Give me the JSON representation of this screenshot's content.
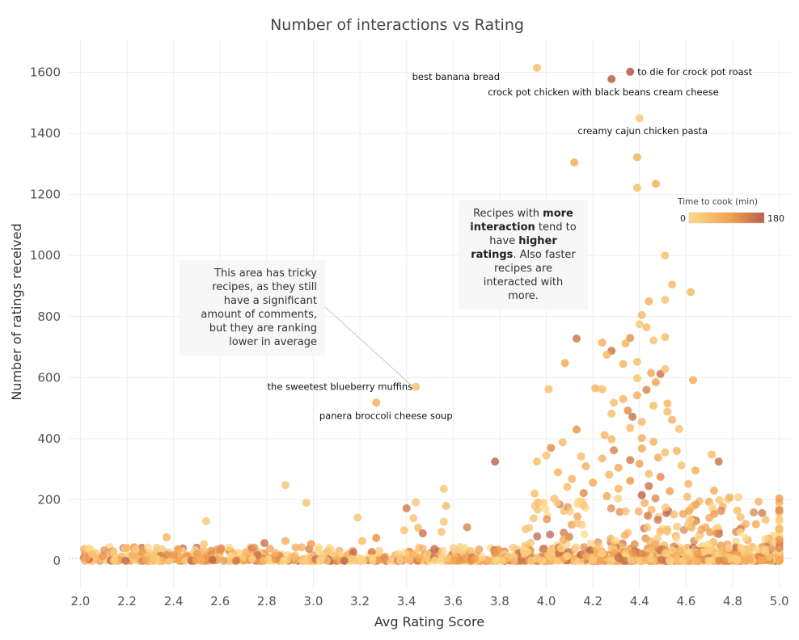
{
  "chart_data": {
    "type": "scatter",
    "title": "Number of interactions vs Rating",
    "xlabel": "Avg Rating Score",
    "ylabel": "Number of ratings received",
    "xlim": [
      1.95,
      5.05
    ],
    "ylim": [
      -90,
      1710
    ],
    "x_ticks": [
      "2.0",
      "2.2",
      "2.4",
      "2.6",
      "2.8",
      "3.0",
      "3.2",
      "3.4",
      "3.6",
      "3.8",
      "4.0",
      "4.2",
      "4.4",
      "4.6",
      "4.8",
      "5.0"
    ],
    "y_ticks": [
      "0",
      "200",
      "400",
      "600",
      "800",
      "1000",
      "1200",
      "1400",
      "1600"
    ],
    "grid": true,
    "color_scale": {
      "title": "Time to cook (min)",
      "min_label": "0",
      "max_label": "180",
      "min": 0,
      "max": 180,
      "colors": [
        "#fdd98a",
        "#f3a04d",
        "#b9604f"
      ]
    },
    "labeled_points": [
      {
        "name": "best banana bread",
        "x": 3.96,
        "y": 1615,
        "time": 40
      },
      {
        "name": "to die for crock pot roast",
        "x": 4.36,
        "y": 1602,
        "time": 180
      },
      {
        "name": "crock pot chicken with black beans   cream cheese",
        "x": 4.28,
        "y": 1578,
        "time": 170
      },
      {
        "name": "creamy cajun chicken pasta",
        "x": 4.4,
        "y": 1450,
        "time": 25
      },
      {
        "name": "the sweetest blueberry muffins",
        "x": 3.44,
        "y": 570,
        "time": 35
      },
      {
        "name": "panera broccoli cheese soup",
        "x": 3.27,
        "y": 518,
        "time": 60
      }
    ],
    "points": [
      {
        "x": 4.12,
        "y": 1305,
        "time": 80
      },
      {
        "x": 4.39,
        "y": 1322,
        "time": 70
      },
      {
        "x": 4.39,
        "y": 1222,
        "time": 45
      },
      {
        "x": 4.47,
        "y": 1235,
        "time": 70
      },
      {
        "x": 4.51,
        "y": 1000,
        "time": 40
      },
      {
        "x": 4.54,
        "y": 905,
        "time": 50
      },
      {
        "x": 4.62,
        "y": 880,
        "time": 55
      },
      {
        "x": 4.51,
        "y": 855,
        "time": 35
      },
      {
        "x": 4.44,
        "y": 850,
        "time": 70
      },
      {
        "x": 4.41,
        "y": 805,
        "time": 50
      },
      {
        "x": 4.4,
        "y": 775,
        "time": 30
      },
      {
        "x": 4.43,
        "y": 765,
        "time": 45
      },
      {
        "x": 4.13,
        "y": 728,
        "time": 150
      },
      {
        "x": 4.36,
        "y": 730,
        "time": 110
      },
      {
        "x": 4.51,
        "y": 733,
        "time": 45
      },
      {
        "x": 4.46,
        "y": 722,
        "time": 35
      },
      {
        "x": 4.34,
        "y": 712,
        "time": 60
      },
      {
        "x": 4.24,
        "y": 715,
        "time": 70
      },
      {
        "x": 4.28,
        "y": 688,
        "time": 150
      },
      {
        "x": 4.26,
        "y": 675,
        "time": 60
      },
      {
        "x": 4.08,
        "y": 648,
        "time": 80
      },
      {
        "x": 4.33,
        "y": 645,
        "time": 55
      },
      {
        "x": 4.39,
        "y": 652,
        "time": 45
      },
      {
        "x": 4.45,
        "y": 615,
        "time": 80
      },
      {
        "x": 4.49,
        "y": 612,
        "time": 150
      },
      {
        "x": 4.51,
        "y": 628,
        "time": 40
      },
      {
        "x": 4.39,
        "y": 598,
        "time": 35
      },
      {
        "x": 4.63,
        "y": 592,
        "time": 80
      },
      {
        "x": 4.47,
        "y": 585,
        "time": 90
      },
      {
        "x": 4.21,
        "y": 565,
        "time": 60
      },
      {
        "x": 4.24,
        "y": 562,
        "time": 45
      },
      {
        "x": 4.01,
        "y": 562,
        "time": 45
      },
      {
        "x": 4.43,
        "y": 560,
        "time": 130
      },
      {
        "x": 4.39,
        "y": 542,
        "time": 70
      },
      {
        "x": 4.33,
        "y": 530,
        "time": 60
      },
      {
        "x": 4.29,
        "y": 518,
        "time": 40
      },
      {
        "x": 4.46,
        "y": 508,
        "time": 45
      },
      {
        "x": 4.52,
        "y": 515,
        "time": 50
      },
      {
        "x": 4.35,
        "y": 492,
        "time": 120
      },
      {
        "x": 4.28,
        "y": 482,
        "time": 45
      },
      {
        "x": 4.37,
        "y": 472,
        "time": 150
      },
      {
        "x": 4.52,
        "y": 488,
        "time": 45
      },
      {
        "x": 4.54,
        "y": 462,
        "time": 60
      },
      {
        "x": 4.41,
        "y": 455,
        "time": 50
      },
      {
        "x": 4.36,
        "y": 435,
        "time": 45
      },
      {
        "x": 4.13,
        "y": 430,
        "time": 110
      },
      {
        "x": 4.57,
        "y": 432,
        "time": 40
      },
      {
        "x": 4.25,
        "y": 412,
        "time": 60
      },
      {
        "x": 4.41,
        "y": 402,
        "time": 70
      },
      {
        "x": 4.28,
        "y": 398,
        "time": 55
      },
      {
        "x": 4.46,
        "y": 390,
        "time": 65
      },
      {
        "x": 4.07,
        "y": 388,
        "time": 45
      },
      {
        "x": 4.02,
        "y": 370,
        "time": 120
      },
      {
        "x": 4.41,
        "y": 368,
        "time": 80
      },
      {
        "x": 4.29,
        "y": 362,
        "time": 130
      },
      {
        "x": 4.56,
        "y": 360,
        "time": 60
      },
      {
        "x": 4.51,
        "y": 355,
        "time": 45
      },
      {
        "x": 4.71,
        "y": 348,
        "time": 50
      },
      {
        "x": 4.0,
        "y": 345,
        "time": 35
      },
      {
        "x": 4.15,
        "y": 342,
        "time": 45
      },
      {
        "x": 4.48,
        "y": 338,
        "time": 70
      },
      {
        "x": 4.24,
        "y": 335,
        "time": 55
      },
      {
        "x": 4.36,
        "y": 330,
        "time": 140
      },
      {
        "x": 3.78,
        "y": 325,
        "time": 170
      },
      {
        "x": 3.96,
        "y": 325,
        "time": 45
      },
      {
        "x": 4.74,
        "y": 325,
        "time": 150
      },
      {
        "x": 4.4,
        "y": 318,
        "time": 90
      },
      {
        "x": 4.58,
        "y": 312,
        "time": 40
      },
      {
        "x": 4.17,
        "y": 310,
        "time": 70
      },
      {
        "x": 4.31,
        "y": 305,
        "time": 80
      },
      {
        "x": 4.64,
        "y": 296,
        "time": 70
      },
      {
        "x": 4.05,
        "y": 290,
        "time": 60
      },
      {
        "x": 4.44,
        "y": 285,
        "time": 45
      },
      {
        "x": 4.27,
        "y": 282,
        "time": 60
      },
      {
        "x": 4.49,
        "y": 275,
        "time": 120
      },
      {
        "x": 4.11,
        "y": 268,
        "time": 60
      },
      {
        "x": 4.36,
        "y": 262,
        "time": 100
      },
      {
        "x": 4.2,
        "y": 256,
        "time": 80
      },
      {
        "x": 4.61,
        "y": 252,
        "time": 55
      },
      {
        "x": 2.88,
        "y": 248,
        "time": 30
      },
      {
        "x": 4.44,
        "y": 245,
        "time": 150
      },
      {
        "x": 4.09,
        "y": 242,
        "time": 45
      },
      {
        "x": 3.56,
        "y": 236,
        "time": 30
      },
      {
        "x": 4.31,
        "y": 236,
        "time": 60
      },
      {
        "x": 4.72,
        "y": 230,
        "time": 70
      },
      {
        "x": 4.53,
        "y": 228,
        "time": 90
      },
      {
        "x": 4.16,
        "y": 222,
        "time": 120
      },
      {
        "x": 3.95,
        "y": 220,
        "time": 40
      },
      {
        "x": 4.41,
        "y": 215,
        "time": 170
      },
      {
        "x": 4.26,
        "y": 212,
        "time": 80
      },
      {
        "x": 3.44,
        "y": 192,
        "time": 30
      },
      {
        "x": 2.97,
        "y": 190,
        "time": 35
      },
      {
        "x": 3.57,
        "y": 180,
        "time": 50
      },
      {
        "x": 3.4,
        "y": 172,
        "time": 140
      },
      {
        "x": 4.82,
        "y": 165,
        "time": 40
      },
      {
        "x": 3.19,
        "y": 142,
        "time": 30
      },
      {
        "x": 3.43,
        "y": 140,
        "time": 35
      },
      {
        "x": 4.9,
        "y": 120,
        "time": 80
      },
      {
        "x": 2.54,
        "y": 130,
        "time": 25
      },
      {
        "x": 3.56,
        "y": 128,
        "time": 30
      },
      {
        "x": 3.66,
        "y": 110,
        "time": 130
      },
      {
        "x": 3.45,
        "y": 108,
        "time": 50
      },
      {
        "x": 3.39,
        "y": 100,
        "time": 35
      },
      {
        "x": 3.47,
        "y": 90,
        "time": 150
      },
      {
        "x": 3.55,
        "y": 95,
        "time": 35
      },
      {
        "x": 2.37,
        "y": 77,
        "time": 55
      },
      {
        "x": 3.27,
        "y": 75,
        "time": 110
      },
      {
        "x": 3.21,
        "y": 65,
        "time": 45
      },
      {
        "x": 2.88,
        "y": 65,
        "time": 70
      },
      {
        "x": 2.79,
        "y": 58,
        "time": 150
      },
      {
        "x": 2.99,
        "y": 55,
        "time": 100
      },
      {
        "x": 2.53,
        "y": 55,
        "time": 25
      },
      {
        "x": 2.2,
        "y": 42,
        "time": 60
      },
      {
        "x": 2.42,
        "y": 38,
        "time": 80
      },
      {
        "x": 2.6,
        "y": 35,
        "time": 120
      },
      {
        "x": 2.71,
        "y": 28,
        "time": 60
      },
      {
        "x": 2.05,
        "y": 22,
        "time": 40
      }
    ]
  },
  "annotations": {
    "left": {
      "text": "This area has tricky recipes, as they still have a significant amount of comments, but they are ranking lower in average"
    },
    "right": {
      "part1": "Recipes with ",
      "bold1": "more interaction",
      "part2": " tend to have ",
      "bold2": "higher ratings",
      "part3": ". Also faster recipes are interacted with more."
    }
  }
}
